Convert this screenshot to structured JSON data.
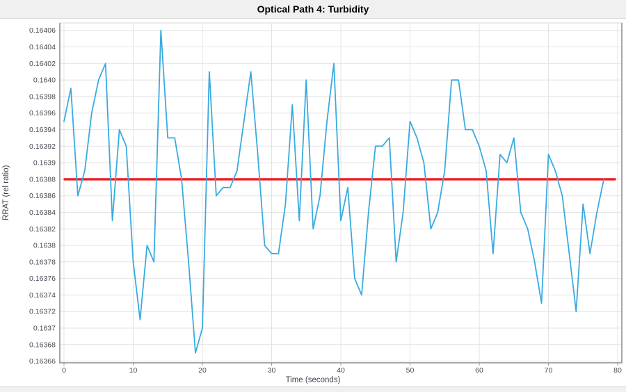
{
  "chart_data": {
    "type": "line",
    "title": "Optical Path 4: Turbidity",
    "xlabel": "Time (seconds)",
    "ylabel": "RRAT (rel ratio)",
    "grid": true,
    "legend": "none",
    "xlim": [
      -0.6,
      80.6
    ],
    "ylim": [
      0.163658,
      0.164069
    ],
    "x_ticks": [
      0,
      10,
      20,
      30,
      40,
      50,
      60,
      70,
      80
    ],
    "y_tick_values": [
      0.16366,
      0.16368,
      0.1637,
      0.16372,
      0.16374,
      0.16376,
      0.16378,
      0.1638,
      0.16382,
      0.16384,
      0.16386,
      0.16388,
      0.1639,
      0.16392,
      0.16394,
      0.16396,
      0.16398,
      0.164,
      0.16402,
      0.16404,
      0.16406
    ],
    "y_tick_labels": [
      "0.16366",
      "0.16368",
      "0.1637",
      "0.16372",
      "0.16374",
      "0.16376",
      "0.16378",
      "0.1638",
      "0.16382",
      "0.16384",
      "0.16386",
      "0.16388",
      "0.1639",
      "0.16392",
      "0.16394",
      "0.16396",
      "0.16398",
      "0.1640",
      "0.16402",
      "0.16404",
      "0.16406"
    ],
    "colors": {
      "series_blue": "#38abe0",
      "reference_red": "#ed1c24",
      "grid": "#e3e3e3",
      "axis_border": "#8c8c8c",
      "tick_text": "#474b55"
    },
    "reference_line": {
      "name": "mean-line",
      "value": 0.16388,
      "x_start": 0.1,
      "x_end": 79.6,
      "color": "#ed1c24"
    },
    "series": [
      {
        "name": "turbidity-rrat",
        "color": "#38abe0",
        "x": [
          0,
          1,
          2,
          3,
          4,
          5,
          6,
          7,
          8,
          9,
          10,
          11,
          12,
          13,
          14,
          15,
          16,
          17,
          18,
          19,
          20,
          21,
          22,
          23,
          24,
          25,
          26,
          27,
          28,
          29,
          30,
          31,
          32,
          33,
          34,
          35,
          36,
          37,
          38,
          39,
          40,
          41,
          42,
          43,
          44,
          45,
          46,
          47,
          48,
          49,
          50,
          51,
          52,
          53,
          54,
          55,
          56,
          57,
          58,
          59,
          60,
          61,
          62,
          63,
          64,
          65,
          66,
          67,
          68,
          69,
          70,
          71,
          72,
          73,
          74,
          75,
          76,
          77,
          78
        ],
        "y": [
          0.16395,
          0.16399,
          0.16386,
          0.16389,
          0.16396,
          0.164,
          0.16402,
          0.16383,
          0.16394,
          0.16392,
          0.16378,
          0.16371,
          0.1638,
          0.16378,
          0.16406,
          0.16393,
          0.16393,
          0.16388,
          0.16378,
          0.16367,
          0.1637,
          0.16401,
          0.16386,
          0.16387,
          0.16387,
          0.16389,
          0.16395,
          0.16401,
          0.16391,
          0.1638,
          0.16379,
          0.16379,
          0.16385,
          0.16397,
          0.16383,
          0.164,
          0.16382,
          0.16386,
          0.16395,
          0.16402,
          0.16383,
          0.16387,
          0.16376,
          0.16374,
          0.16384,
          0.16392,
          0.16392,
          0.16393,
          0.16378,
          0.16384,
          0.16395,
          0.16393,
          0.1639,
          0.16382,
          0.16384,
          0.16389,
          0.164,
          0.164,
          0.16394,
          0.16394,
          0.16392,
          0.16389,
          0.16379,
          0.16391,
          0.1639,
          0.16393,
          0.16384,
          0.16382,
          0.16378,
          0.16373,
          0.16391,
          0.16389,
          0.16386,
          0.16379,
          0.16372,
          0.16385,
          0.16379,
          0.16384,
          0.16388
        ]
      }
    ]
  }
}
